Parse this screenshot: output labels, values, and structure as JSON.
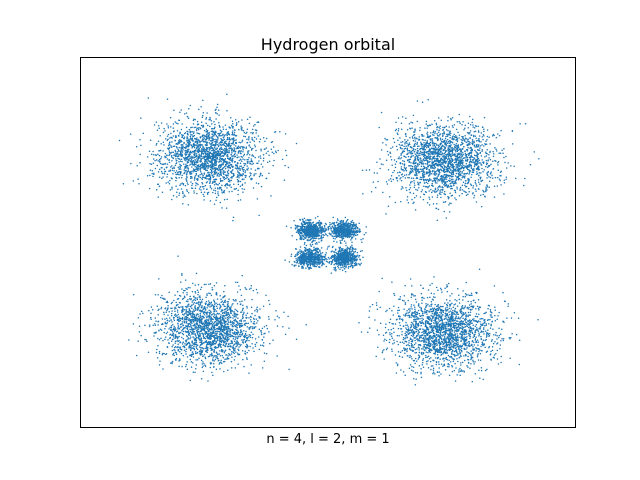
{
  "chart_data": {
    "type": "scatter",
    "title": "Hydrogen orbital",
    "xlabel": "n = 4, l = 2, m = 1",
    "ylabel": "",
    "xticks": false,
    "yticks": false,
    "grid": false,
    "marker_color": "#1f77b4",
    "clusters": [
      {
        "cx": -0.6,
        "cy": 0.41,
        "sx": 0.13,
        "sy": 0.085,
        "count": 2000
      },
      {
        "cx": 0.59,
        "cy": 0.39,
        "sx": 0.13,
        "sy": 0.085,
        "count": 2000
      },
      {
        "cx": -0.6,
        "cy": -0.41,
        "sx": 0.13,
        "sy": 0.085,
        "count": 2000
      },
      {
        "cx": 0.59,
        "cy": -0.43,
        "sx": 0.13,
        "sy": 0.085,
        "count": 2000
      },
      {
        "cx": -0.085,
        "cy": 0.055,
        "sx": 0.035,
        "sy": 0.022,
        "count": 560
      },
      {
        "cx": 0.085,
        "cy": 0.055,
        "sx": 0.035,
        "sy": 0.022,
        "count": 560
      },
      {
        "cx": -0.085,
        "cy": -0.075,
        "sx": 0.035,
        "sy": 0.022,
        "count": 560
      },
      {
        "cx": 0.085,
        "cy": -0.075,
        "sx": 0.035,
        "sy": 0.022,
        "count": 560
      }
    ],
    "xlim": [
      -1.25,
      1.25
    ],
    "ylim": [
      -0.88,
      0.88
    ]
  }
}
